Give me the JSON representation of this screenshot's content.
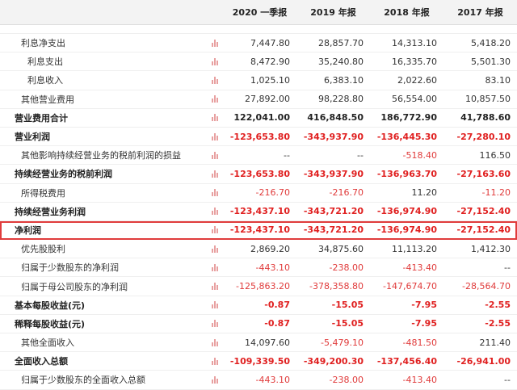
{
  "header": {
    "c1": "2020 一季报",
    "c2": "2019 年报",
    "c3": "2018 年报",
    "c4": "2017 年报"
  },
  "rows": [
    {
      "label": "利息净支出",
      "v": [
        "7,447.80",
        "28,857.70",
        "14,313.10",
        "5,418.20"
      ],
      "indent": 1
    },
    {
      "label": "利息支出",
      "v": [
        "8,472.90",
        "35,240.80",
        "16,335.70",
        "5,501.30"
      ],
      "indent": 2
    },
    {
      "label": "利息收入",
      "v": [
        "1,025.10",
        "6,383.10",
        "2,022.60",
        "83.10"
      ],
      "indent": 2
    },
    {
      "label": "其他营业费用",
      "v": [
        "27,892.00",
        "98,228.80",
        "56,554.00",
        "10,857.50"
      ],
      "indent": 1
    },
    {
      "label": "营业费用合计",
      "v": [
        "122,041.00",
        "416,848.50",
        "186,772.90",
        "41,788.60"
      ],
      "bold": true
    },
    {
      "label": "营业利润",
      "v": [
        "-123,653.80",
        "-343,937.90",
        "-136,445.30",
        "-27,280.10"
      ],
      "bold": true
    },
    {
      "label": "其他影响持续经营业务的税前利润的损益",
      "v": [
        "--",
        "--",
        "-518.40",
        "116.50"
      ],
      "indent": 1
    },
    {
      "label": "持续经营业务的税前利润",
      "v": [
        "-123,653.80",
        "-343,937.90",
        "-136,963.70",
        "-27,163.60"
      ],
      "bold": true
    },
    {
      "label": "所得税费用",
      "v": [
        "-216.70",
        "-216.70",
        "11.20",
        "-11.20"
      ],
      "indent": 1
    },
    {
      "label": "持续经营业务利润",
      "v": [
        "-123,437.10",
        "-343,721.20",
        "-136,974.90",
        "-27,152.40"
      ],
      "bold": true
    },
    {
      "label": "净利润",
      "v": [
        "-123,437.10",
        "-343,721.20",
        "-136,974.90",
        "-27,152.40"
      ],
      "bold": true,
      "highlight": true
    },
    {
      "label": "优先股股利",
      "v": [
        "2,869.20",
        "34,875.60",
        "11,113.20",
        "1,412.30"
      ],
      "indent": 1
    },
    {
      "label": "归属于少数股东的净利润",
      "v": [
        "-443.10",
        "-238.00",
        "-413.40",
        "--"
      ],
      "indent": 1
    },
    {
      "label": "归属于母公司股东的净利润",
      "v": [
        "-125,863.20",
        "-378,358.80",
        "-147,674.70",
        "-28,564.70"
      ],
      "indent": 1
    },
    {
      "label": "基本每股收益(元)",
      "v": [
        "-0.87",
        "-15.05",
        "-7.95",
        "-2.55"
      ],
      "bold": true
    },
    {
      "label": "稀释每股收益(元)",
      "v": [
        "-0.87",
        "-15.05",
        "-7.95",
        "-2.55"
      ],
      "bold": true
    },
    {
      "label": "其他全面收入",
      "v": [
        "14,097.60",
        "-5,479.10",
        "-481.50",
        "211.40"
      ],
      "indent": 1
    },
    {
      "label": "全面收入总额",
      "v": [
        "-109,339.50",
        "-349,200.30",
        "-137,456.40",
        "-26,941.00"
      ],
      "bold": true
    },
    {
      "label": "归属于少数股东的全面收入总额",
      "v": [
        "-443.10",
        "-238.00",
        "-413.40",
        "--"
      ],
      "indent": 1
    }
  ]
}
